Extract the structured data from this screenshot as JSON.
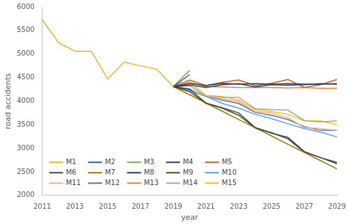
{
  "chart_data": {
    "type": "line",
    "x_label": "year",
    "y_label": "road accidents",
    "x": [
      2011,
      2012,
      2013,
      2014,
      2015,
      2016,
      2017,
      2018,
      2019,
      2020,
      2021,
      2022,
      2023,
      2024,
      2025,
      2026,
      2027,
      2028,
      2029
    ],
    "xlim": [
      2011,
      2029
    ],
    "xticks": [
      2011,
      2013,
      2015,
      2017,
      2019,
      2021,
      2023,
      2025,
      2027,
      2029
    ],
    "ylim": [
      2000,
      6000
    ],
    "yticks": [
      2000,
      2500,
      3000,
      3500,
      4000,
      4500,
      5000,
      5500,
      6000
    ],
    "grid": false,
    "legend": "lower left",
    "series": [
      {
        "name": "M1",
        "color": "#e6b422",
        "values": [
          5730,
          5240,
          5060,
          5060,
          4470,
          4830,
          4750,
          4680,
          4310,
          null,
          null,
          null,
          null,
          null,
          null,
          null,
          null,
          null,
          null
        ]
      },
      {
        "name": "M2",
        "color": "#2f5597",
        "values": [
          null,
          null,
          null,
          null,
          null,
          null,
          null,
          null,
          4310,
          4560,
          null,
          null,
          null,
          null,
          null,
          null,
          null,
          null,
          null
        ]
      },
      {
        "name": "M3",
        "color": "#70ad47",
        "values": [
          null,
          null,
          null,
          null,
          null,
          null,
          null,
          null,
          4310,
          4650,
          null,
          null,
          null,
          null,
          null,
          null,
          null,
          null,
          null
        ]
      },
      {
        "name": "M4",
        "color": "#203864",
        "values": [
          null,
          null,
          null,
          null,
          null,
          null,
          null,
          null,
          4310,
          4370,
          4330,
          4380,
          4360,
          4370,
          4360,
          4370,
          4360,
          4360,
          4370
        ]
      },
      {
        "name": "M5",
        "color": "#c55a11",
        "values": [
          null,
          null,
          null,
          null,
          null,
          null,
          null,
          null,
          4310,
          4450,
          4330,
          4400,
          4450,
          4330,
          4380,
          4460,
          4290,
          4350,
          4460
        ]
      },
      {
        "name": "M6",
        "color": "#404040",
        "values": [
          null,
          null,
          null,
          null,
          null,
          null,
          null,
          null,
          4310,
          4250,
          3960,
          3860,
          3750,
          3440,
          3320,
          3230,
          2930,
          2800,
          2670
        ]
      },
      {
        "name": "M7",
        "color": "#997300",
        "values": [
          null,
          null,
          null,
          null,
          null,
          null,
          null,
          null,
          4310,
          4135,
          3960,
          3785,
          3610,
          3435,
          3260,
          3085,
          2910,
          2735,
          2560
        ]
      },
      {
        "name": "M8",
        "color": "#1f3864",
        "values": [
          null,
          null,
          null,
          null,
          null,
          null,
          null,
          null,
          4310,
          4340,
          4290,
          4350,
          4370,
          4300,
          4350,
          4340,
          4350,
          4370,
          4360
        ]
      },
      {
        "name": "M9",
        "color": "#375623",
        "values": [
          null,
          null,
          null,
          null,
          null,
          null,
          null,
          null,
          4310,
          4200,
          3950,
          3850,
          3700,
          3430,
          3330,
          3200,
          2920,
          2800,
          2700
        ]
      },
      {
        "name": "M10",
        "color": "#5b9bd5",
        "values": [
          null,
          null,
          null,
          null,
          null,
          null,
          null,
          null,
          4310,
          4220,
          4100,
          3950,
          3850,
          3720,
          3630,
          3520,
          3420,
          3340,
          3240
        ]
      },
      {
        "name": "M11",
        "color": "#f4b183",
        "values": [
          null,
          null,
          null,
          null,
          null,
          null,
          null,
          null,
          4310,
          4250,
          4110,
          4050,
          3990,
          3780,
          3750,
          3650,
          3440,
          3420,
          3380
        ]
      },
      {
        "name": "M12",
        "color": "#4472c4",
        "values": [
          null,
          null,
          null,
          null,
          null,
          null,
          null,
          null,
          4310,
          4260,
          4100,
          4020,
          3950,
          3760,
          3700,
          3610,
          3460,
          3380,
          3380
        ]
      },
      {
        "name": "M13",
        "color": "#ed7d31",
        "values": [
          null,
          null,
          null,
          null,
          null,
          null,
          null,
          null,
          4310,
          4400,
          4310,
          4300,
          4290,
          4290,
          4290,
          4280,
          4290,
          4270,
          4270
        ]
      },
      {
        "name": "M14",
        "color": "#a5a5a5",
        "values": [
          null,
          null,
          null,
          null,
          null,
          null,
          null,
          null,
          4310,
          4330,
          4110,
          4080,
          4080,
          3840,
          3820,
          3810,
          3590,
          3560,
          3580
        ]
      },
      {
        "name": "M15",
        "color": "#ffc000",
        "values": [
          null,
          null,
          null,
          null,
          null,
          null,
          null,
          null,
          4310,
          4400,
          4120,
          4100,
          4020,
          3820,
          3780,
          3720,
          3580,
          3580,
          3500
        ]
      }
    ]
  }
}
